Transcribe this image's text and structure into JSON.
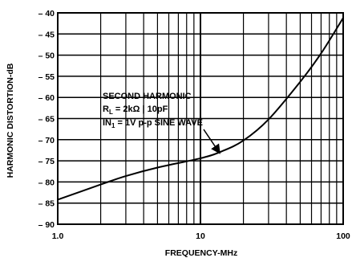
{
  "chart_data": {
    "type": "line",
    "xlabel": "FREQUENCY-MHz",
    "ylabel": "HARMONIC DISTORTION-dB",
    "x_scale": "log",
    "xlim": [
      1,
      100
    ],
    "ylim": [
      -90,
      -40
    ],
    "x_ticks": [
      1,
      10,
      100
    ],
    "x_tick_labels": [
      "1.0",
      "10",
      "100"
    ],
    "y_ticks": [
      -40,
      -45,
      -50,
      -55,
      -60,
      -65,
      -70,
      -75,
      -80,
      -85,
      -90
    ],
    "y_tick_labels": [
      "– 40",
      "– 45",
      "– 50",
      "– 55",
      "– 60",
      "– 65",
      "– 70",
      "– 75",
      "– 80",
      "– 85",
      "– 90"
    ],
    "grid": true,
    "series": [
      {
        "x": [
          1,
          2,
          3,
          5,
          10,
          14,
          20,
          30,
          50,
          70,
          100
        ],
        "y": [
          -84.2,
          -80.6,
          -78.6,
          -76.6,
          -74.4,
          -72.8,
          -70.2,
          -65.2,
          -56.3,
          -49.6,
          -41.2
        ]
      }
    ],
    "annotation": {
      "lines": [
        "SECOND HARMONIC",
        "R<sub>L</sub> = 2kΩ || 10pF",
        "IN<sub>1</sub> = 1V p-p SINE WAVE"
      ],
      "line1": "SECOND HARMONIC",
      "line2": "RL = 2kΩ || 10pF",
      "line3": "IN1 = 1V p-p SINE WAVE",
      "arrow_to": {
        "x": 14,
        "y": -72.8
      }
    }
  }
}
